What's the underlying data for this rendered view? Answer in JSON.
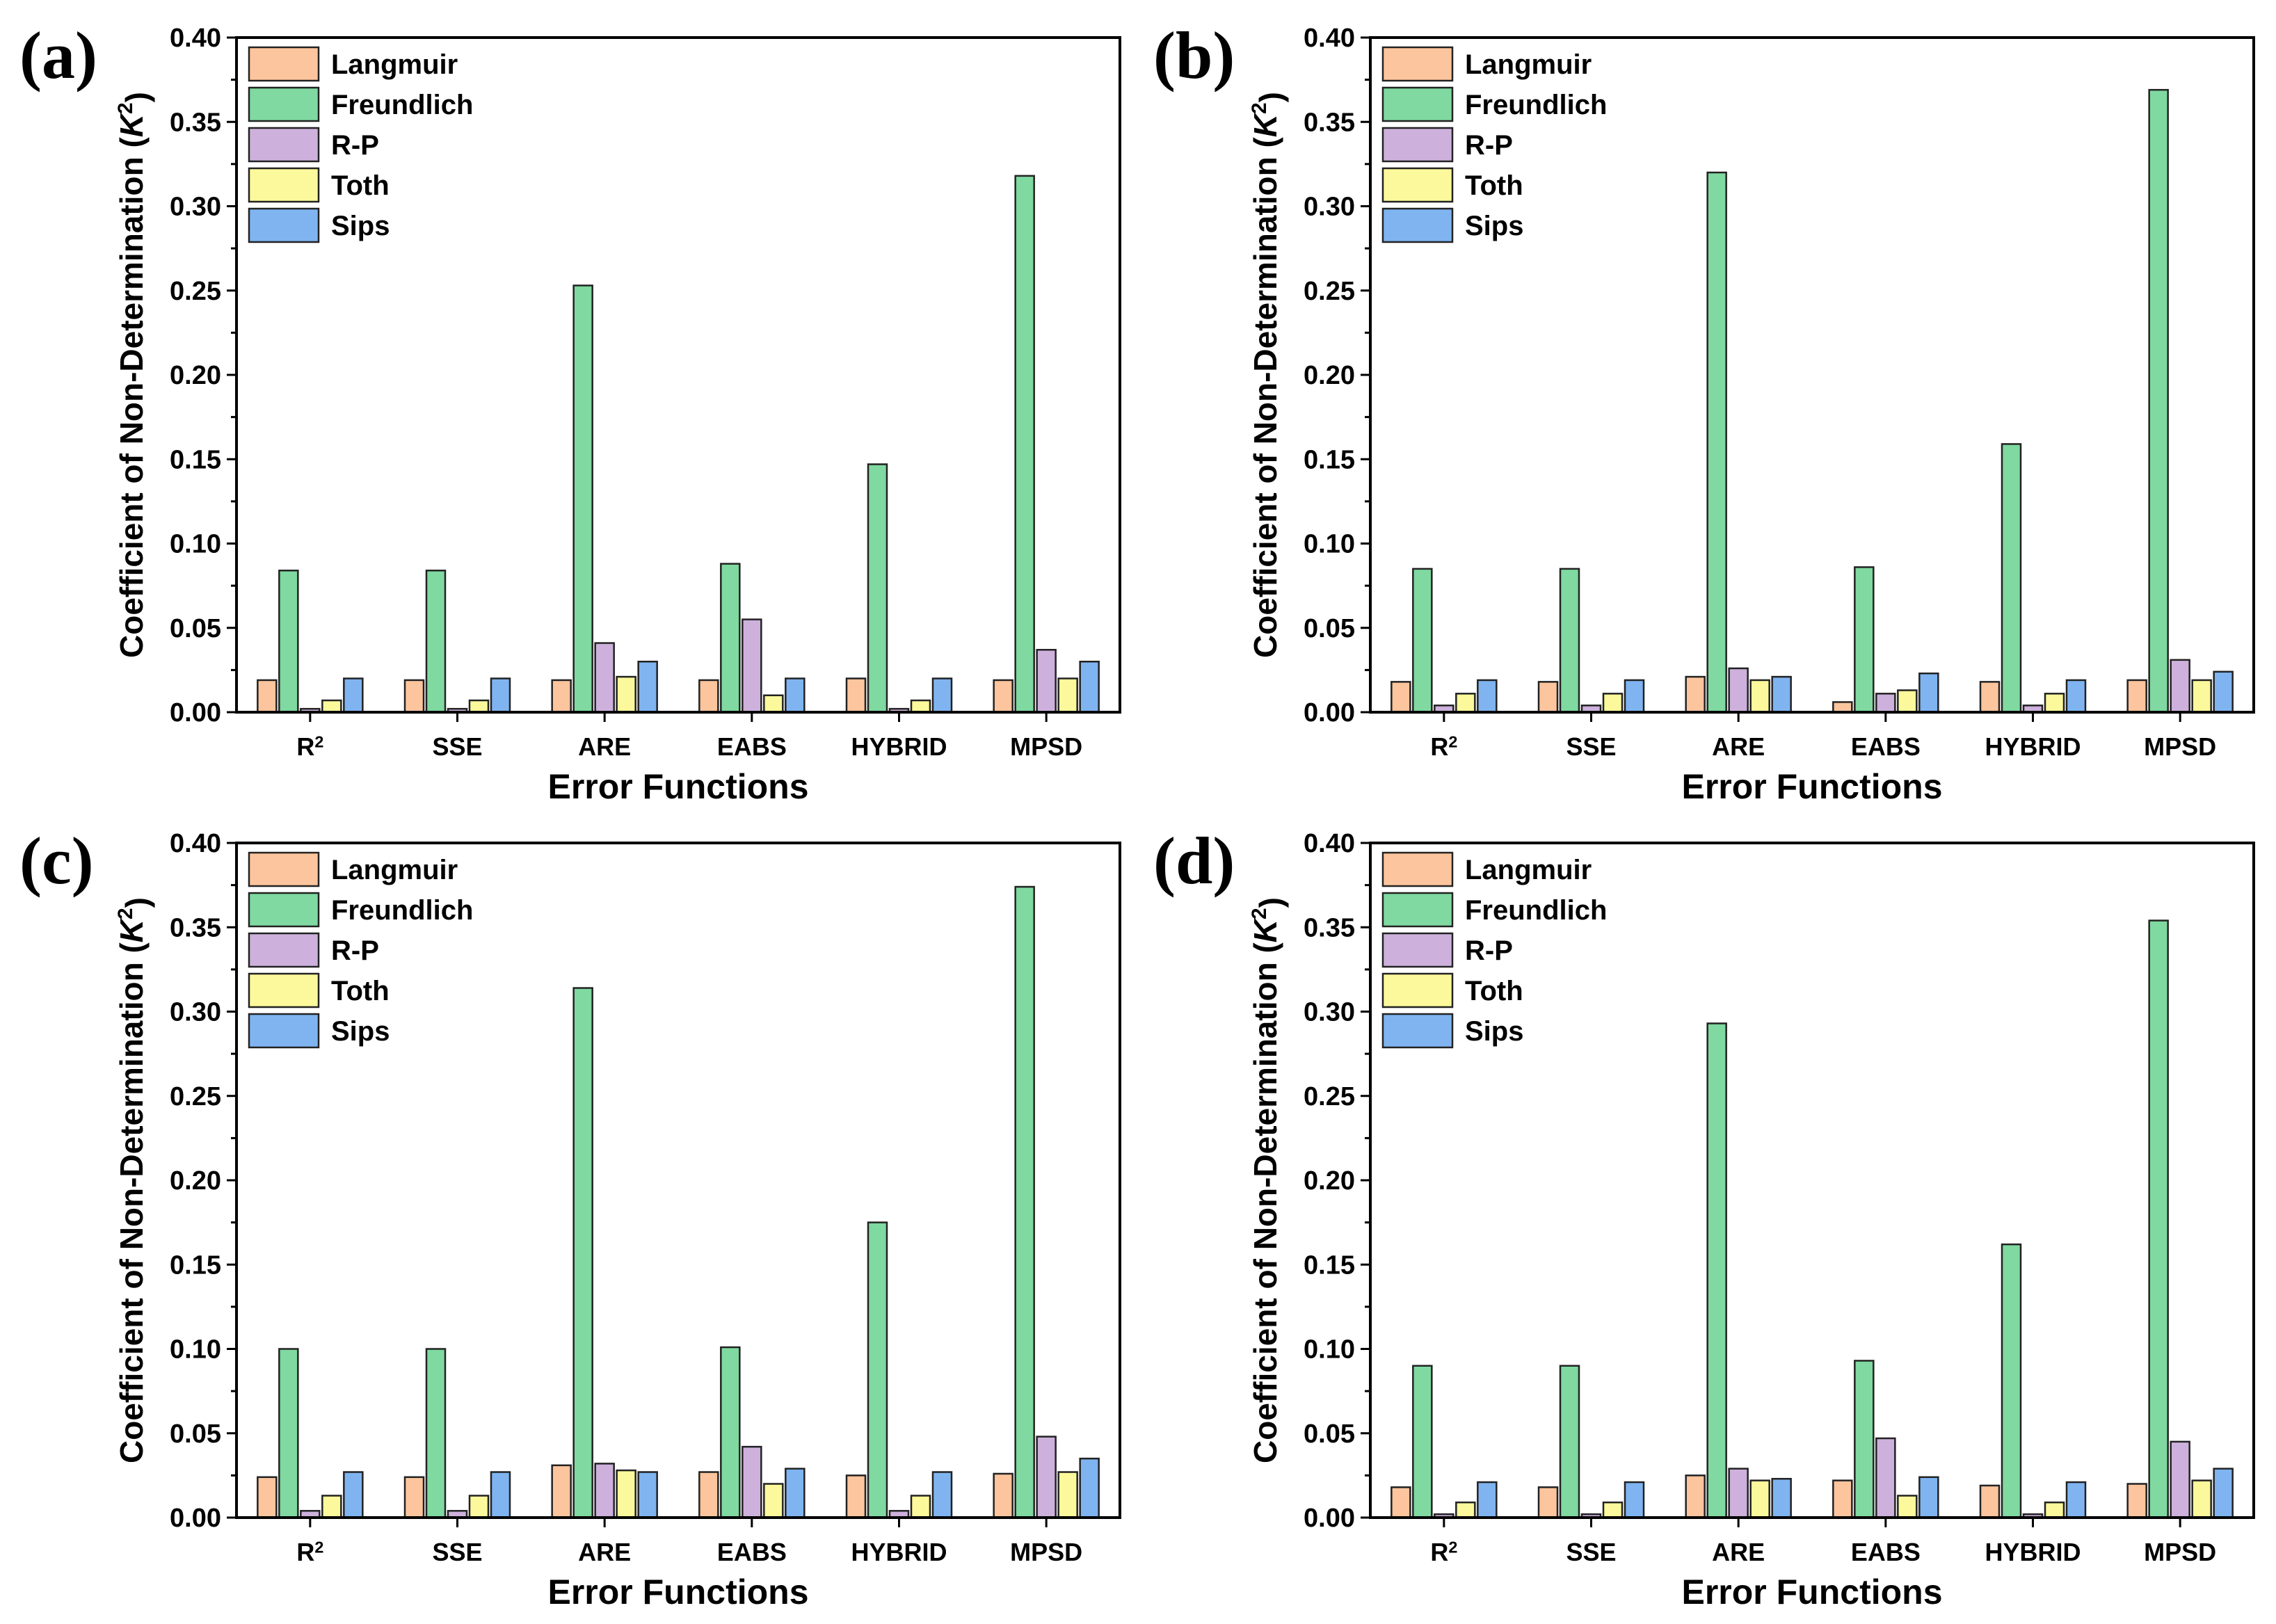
{
  "series_colors": [
    "#fcc59d",
    "#7fd9a0",
    "#cdb1dc",
    "#fbf99b",
    "#7fb4f0"
  ],
  "chart_data": [
    {
      "panel": "(a)",
      "type": "bar",
      "title": "",
      "xlabel": "Error Functions",
      "ylabel": "Coefficient of Non-Determination (K²)",
      "ylim": [
        0,
        0.4
      ],
      "yticks": [
        "0.00",
        "0.05",
        "0.10",
        "0.15",
        "0.20",
        "0.25",
        "0.30",
        "0.35",
        "0.40"
      ],
      "categories": [
        "R²",
        "SSE",
        "ARE",
        "EABS",
        "HYBRID",
        "MPSD"
      ],
      "legend_position": "top-left",
      "series": [
        {
          "name": "Langmuir",
          "values": [
            0.019,
            0.019,
            0.019,
            0.019,
            0.02,
            0.019
          ]
        },
        {
          "name": "Freundlich",
          "values": [
            0.084,
            0.084,
            0.253,
            0.088,
            0.147,
            0.318
          ]
        },
        {
          "name": "R-P",
          "values": [
            0.002,
            0.002,
            0.041,
            0.055,
            0.002,
            0.037
          ]
        },
        {
          "name": "Toth",
          "values": [
            0.007,
            0.007,
            0.021,
            0.01,
            0.007,
            0.02
          ]
        },
        {
          "name": "Sips",
          "values": [
            0.02,
            0.02,
            0.03,
            0.02,
            0.02,
            0.03
          ]
        }
      ]
    },
    {
      "panel": "(b)",
      "type": "bar",
      "title": "",
      "xlabel": "Error Functions",
      "ylabel": "Coefficient of Non-Determination (K²)",
      "ylim": [
        0,
        0.4
      ],
      "yticks": [
        "0.00",
        "0.05",
        "0.10",
        "0.15",
        "0.20",
        "0.25",
        "0.30",
        "0.35",
        "0.40"
      ],
      "categories": [
        "R²",
        "SSE",
        "ARE",
        "EABS",
        "HYBRID",
        "MPSD"
      ],
      "legend_position": "top-left",
      "series": [
        {
          "name": "Langmuir",
          "values": [
            0.018,
            0.018,
            0.021,
            0.006,
            0.018,
            0.019
          ]
        },
        {
          "name": "Freundlich",
          "values": [
            0.085,
            0.085,
            0.32,
            0.086,
            0.159,
            0.369
          ]
        },
        {
          "name": "R-P",
          "values": [
            0.004,
            0.004,
            0.026,
            0.011,
            0.004,
            0.031
          ]
        },
        {
          "name": "Toth",
          "values": [
            0.011,
            0.011,
            0.019,
            0.013,
            0.011,
            0.019
          ]
        },
        {
          "name": "Sips",
          "values": [
            0.019,
            0.019,
            0.021,
            0.023,
            0.019,
            0.024
          ]
        }
      ]
    },
    {
      "panel": "(c)",
      "type": "bar",
      "title": "",
      "xlabel": "Error Functions",
      "ylabel": "Coefficient of Non-Determination (K²)",
      "ylim": [
        0,
        0.4
      ],
      "yticks": [
        "0.00",
        "0.05",
        "0.10",
        "0.15",
        "0.20",
        "0.25",
        "0.30",
        "0.35",
        "0.40"
      ],
      "categories": [
        "R²",
        "SSE",
        "ARE",
        "EABS",
        "HYBRID",
        "MPSD"
      ],
      "legend_position": "top-left",
      "series": [
        {
          "name": "Langmuir",
          "values": [
            0.024,
            0.024,
            0.031,
            0.027,
            0.025,
            0.026
          ]
        },
        {
          "name": "Freundlich",
          "values": [
            0.1,
            0.1,
            0.314,
            0.101,
            0.175,
            0.374
          ]
        },
        {
          "name": "R-P",
          "values": [
            0.004,
            0.004,
            0.032,
            0.042,
            0.004,
            0.048
          ]
        },
        {
          "name": "Toth",
          "values": [
            0.013,
            0.013,
            0.028,
            0.02,
            0.013,
            0.027
          ]
        },
        {
          "name": "Sips",
          "values": [
            0.027,
            0.027,
            0.027,
            0.029,
            0.027,
            0.035
          ]
        }
      ]
    },
    {
      "panel": "(d)",
      "type": "bar",
      "title": "",
      "xlabel": "Error Functions",
      "ylabel": "Coefficient of Non-Determination (K²)",
      "ylim": [
        0,
        0.4
      ],
      "yticks": [
        "0.00",
        "0.05",
        "0.10",
        "0.15",
        "0.20",
        "0.25",
        "0.30",
        "0.35",
        "0.40"
      ],
      "categories": [
        "R²",
        "SSE",
        "ARE",
        "EABS",
        "HYBRID",
        "MPSD"
      ],
      "legend_position": "top-left",
      "series": [
        {
          "name": "Langmuir",
          "values": [
            0.018,
            0.018,
            0.025,
            0.022,
            0.019,
            0.02
          ]
        },
        {
          "name": "Freundlich",
          "values": [
            0.09,
            0.09,
            0.293,
            0.093,
            0.162,
            0.354
          ]
        },
        {
          "name": "R-P",
          "values": [
            0.002,
            0.002,
            0.029,
            0.047,
            0.002,
            0.045
          ]
        },
        {
          "name": "Toth",
          "values": [
            0.009,
            0.009,
            0.022,
            0.013,
            0.009,
            0.022
          ]
        },
        {
          "name": "Sips",
          "values": [
            0.021,
            0.021,
            0.023,
            0.024,
            0.021,
            0.029
          ]
        }
      ]
    }
  ]
}
